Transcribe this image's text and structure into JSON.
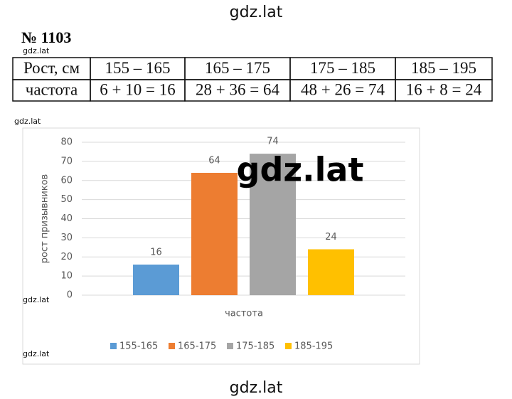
{
  "header": {
    "problem": "№ 1103"
  },
  "watermarks": [
    "gdz.lat",
    "gdz.lat",
    "gdz.lat",
    "gdz.lat",
    "gdz.lat",
    "gdz.lat",
    "gdz.lat"
  ],
  "table": {
    "rows": [
      [
        "Рост, см",
        "155 – 165",
        "165 – 175",
        "175 – 185",
        "185 – 195"
      ],
      [
        "частота",
        "6 + 10 = 16",
        "28 + 36 = 64",
        "48 + 26 = 74",
        "16 + 8 = 24"
      ]
    ]
  },
  "chart_data": {
    "type": "bar",
    "y_label": "рост призывников",
    "x_label": "частота",
    "categories": [
      null
    ],
    "series": [
      {
        "name": "155-165",
        "color": "#5b9bd5",
        "values": [
          16
        ]
      },
      {
        "name": "165-175",
        "color": "#ed7d31",
        "values": [
          64
        ]
      },
      {
        "name": "175-185",
        "color": "#a5a5a5",
        "values": [
          74
        ]
      },
      {
        "name": "185-195",
        "color": "#ffc000",
        "values": [
          24
        ]
      }
    ],
    "ylim": [
      0,
      80
    ],
    "yticks": [
      0,
      10,
      20,
      30,
      40,
      50,
      60,
      70,
      80
    ],
    "grid": true,
    "legend": "bottom"
  }
}
